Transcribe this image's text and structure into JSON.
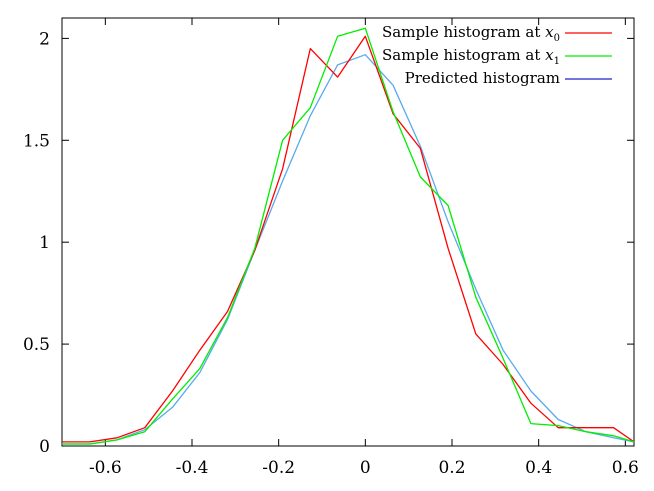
{
  "chart_data": {
    "type": "line",
    "title": "",
    "xlabel": "",
    "ylabel": "",
    "xlim": [
      -0.7,
      0.62
    ],
    "ylim": [
      0,
      2.1
    ],
    "x_ticks": [
      "-0.6",
      "-0.4",
      "-0.2",
      "0",
      "0.2",
      "0.4",
      "0.6"
    ],
    "x_tick_values": [
      -0.6,
      -0.4,
      -0.2,
      0,
      0.2,
      0.4,
      0.6
    ],
    "y_ticks": [
      "0",
      "0.5",
      "1",
      "1.5",
      "2"
    ],
    "y_tick_values": [
      0,
      0.5,
      1,
      1.5,
      2
    ],
    "grid": false,
    "legend_position": "top-right",
    "series": [
      {
        "name": "Sample histogram at x0",
        "legend_prefix": "Sample histogram at ",
        "legend_var": "x",
        "legend_sub": "0",
        "color": "#ff0000",
        "x": [
          -0.7,
          -0.636,
          -0.573,
          -0.509,
          -0.445,
          -0.382,
          -0.318,
          -0.255,
          -0.191,
          -0.127,
          -0.064,
          0.0,
          0.064,
          0.127,
          0.191,
          0.255,
          0.318,
          0.382,
          0.445,
          0.509,
          0.573,
          0.62
        ],
        "y": [
          0.02,
          0.02,
          0.04,
          0.09,
          0.27,
          0.47,
          0.66,
          0.96,
          1.36,
          1.95,
          1.81,
          2.01,
          1.63,
          1.46,
          0.97,
          0.55,
          0.4,
          0.21,
          0.09,
          0.09,
          0.09,
          0.02
        ]
      },
      {
        "name": "Sample histogram at x1",
        "legend_prefix": "Sample histogram at ",
        "legend_var": "x",
        "legend_sub": "1",
        "color": "#00ee00",
        "x": [
          -0.7,
          -0.636,
          -0.573,
          -0.509,
          -0.445,
          -0.382,
          -0.318,
          -0.255,
          -0.191,
          -0.127,
          -0.064,
          0.0,
          0.064,
          0.127,
          0.191,
          0.255,
          0.318,
          0.382,
          0.445,
          0.509,
          0.573,
          0.62
        ],
        "y": [
          0.01,
          0.01,
          0.03,
          0.07,
          0.23,
          0.38,
          0.63,
          0.97,
          1.5,
          1.66,
          2.01,
          2.05,
          1.64,
          1.32,
          1.18,
          0.73,
          0.43,
          0.11,
          0.1,
          0.07,
          0.05,
          0.02
        ]
      },
      {
        "name": "Predicted histogram",
        "legend_prefix": "Predicted histogram",
        "legend_var": "",
        "legend_sub": "",
        "color": "#5aaaee",
        "legend_color": "#2020cc",
        "x": [
          -0.7,
          -0.636,
          -0.573,
          -0.509,
          -0.445,
          -0.382,
          -0.318,
          -0.255,
          -0.191,
          -0.127,
          -0.064,
          0.0,
          0.064,
          0.127,
          0.191,
          0.255,
          0.318,
          0.382,
          0.445,
          0.509,
          0.573,
          0.62
        ],
        "y": [
          0.01,
          0.01,
          0.03,
          0.08,
          0.19,
          0.36,
          0.62,
          0.96,
          1.3,
          1.62,
          1.87,
          1.92,
          1.77,
          1.47,
          1.1,
          0.77,
          0.47,
          0.27,
          0.13,
          0.07,
          0.04,
          0.02
        ]
      }
    ]
  }
}
